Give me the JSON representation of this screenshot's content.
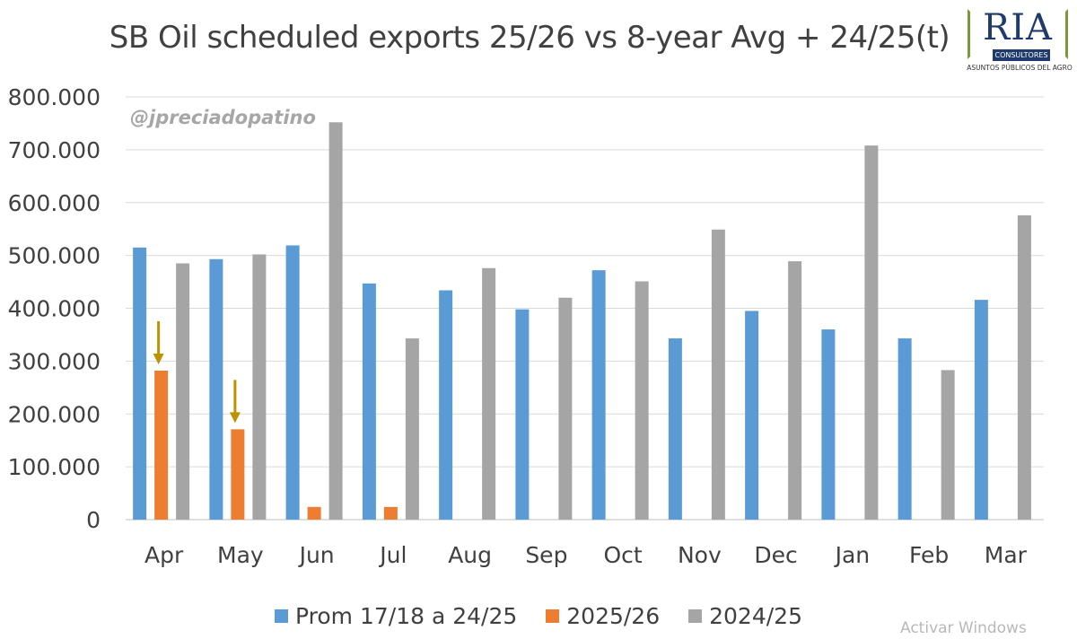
{
  "page": {
    "watermark_handle": "@jpreciadopatino",
    "os_watermark": "Activar Windows"
  },
  "logo": {
    "main_text": "RIA",
    "band_text": "CONSULTORES",
    "tagline": "ASUNTOS PÚBLICOS DEL AGRO",
    "colors": {
      "frame": "#7a9a3a",
      "text": "#1f3a6b"
    }
  },
  "chart_data": {
    "type": "bar",
    "title": "SB Oil scheduled exports 25/26 vs 8-year Avg + 24/25(t)",
    "xlabel": "",
    "ylabel": "",
    "categories": [
      "Apr",
      "May",
      "Jun",
      "Jul",
      "Aug",
      "Sep",
      "Oct",
      "Nov",
      "Dec",
      "Jan",
      "Feb",
      "Mar"
    ],
    "ylim": [
      0,
      800000
    ],
    "yticks": [
      0,
      100000,
      200000,
      300000,
      400000,
      500000,
      600000,
      700000,
      800000
    ],
    "ytick_labels": [
      "0",
      "100.000",
      "200.000",
      "300.000",
      "400.000",
      "500.000",
      "600.000",
      "700.000",
      "800.000"
    ],
    "grid": true,
    "legend_position": "bottom",
    "series": [
      {
        "name": "Prom 17/18 a 24/25",
        "color": "#5b9bd5",
        "values": [
          515000,
          493000,
          519000,
          447000,
          434000,
          398000,
          472000,
          343000,
          395000,
          360000,
          343000,
          416000
        ]
      },
      {
        "name": "2025/26",
        "color": "#ed7d31",
        "values": [
          282000,
          171000,
          24000,
          24000,
          null,
          null,
          null,
          null,
          null,
          null,
          null,
          null
        ]
      },
      {
        "name": "2024/25",
        "color": "#a5a5a5",
        "values": [
          485000,
          502000,
          752000,
          343000,
          476000,
          420000,
          451000,
          549000,
          489000,
          708000,
          283000,
          576000
        ]
      }
    ],
    "annotations": [
      {
        "type": "arrow-down",
        "category": "Apr",
        "series": "2025/26",
        "color": "#bf9000"
      },
      {
        "type": "arrow-down",
        "category": "May",
        "series": "2025/26",
        "color": "#bf9000"
      }
    ]
  }
}
